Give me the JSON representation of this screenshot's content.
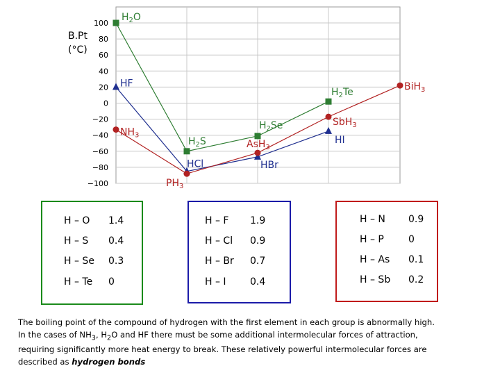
{
  "chart_data": {
    "type": "line",
    "y_axis_title": [
      "B.Pt",
      "(°C)"
    ],
    "yticks": [
      100,
      80,
      60,
      40,
      20,
      0,
      -20,
      -40,
      -60,
      -80,
      -100
    ],
    "ylim": [
      -100,
      100
    ],
    "grid": true,
    "series": [
      {
        "color": "#2e7d32",
        "marker": "square",
        "points": [
          {
            "name": "H2O",
            "y": 100
          },
          {
            "name": "H2S",
            "y": -60
          },
          {
            "name": "H2Se",
            "y": -41
          },
          {
            "name": "H2Te",
            "y": 2
          }
        ]
      },
      {
        "color": "#1f2f8f",
        "marker": "triangle",
        "points": [
          {
            "name": "HF",
            "y": 20
          },
          {
            "name": "HCl",
            "y": -85
          },
          {
            "name": "HBr",
            "y": -67
          },
          {
            "name": "HI",
            "y": -35
          }
        ]
      },
      {
        "color": "#b22222",
        "marker": "circle",
        "points": [
          {
            "name": "NH3",
            "y": -33
          },
          {
            "name": "PH3",
            "y": -88
          },
          {
            "name": "AsH3",
            "y": -62
          },
          {
            "name": "SbH3",
            "y": -17
          },
          {
            "name": "BiH3",
            "y": 22
          }
        ]
      }
    ],
    "point_labels": {
      "H2O": [
        "H",
        "2",
        "O"
      ],
      "H2S": [
        "H",
        "2",
        "S"
      ],
      "H2Se": [
        "H",
        "2",
        "Se"
      ],
      "H2Te": [
        "H",
        "2",
        "Te"
      ],
      "HF": [
        "HF"
      ],
      "HCl": [
        "HCl"
      ],
      "HBr": [
        "HBr"
      ],
      "HI": [
        "HI"
      ],
      "NH3": [
        "NH",
        "3"
      ],
      "PH3": [
        "PH",
        "3"
      ],
      "AsH3": [
        "AsH",
        "3"
      ],
      "SbH3": [
        "SbH",
        "3"
      ],
      "BiH3": [
        "BiH",
        "3"
      ]
    }
  },
  "tables": [
    {
      "color": "#1a8a1a",
      "rows": [
        [
          "H – O",
          "1.4"
        ],
        [
          "H – S",
          "0.4"
        ],
        [
          "H – Se",
          "0.3"
        ],
        [
          "H – Te",
          "0"
        ]
      ]
    },
    {
      "color": "#1a1aa8",
      "rows": [
        [
          "H – F",
          "1.9"
        ],
        [
          "H – Cl",
          "0.9"
        ],
        [
          "H – Br",
          "0.7"
        ],
        [
          "H – I",
          "0.4"
        ]
      ]
    },
    {
      "color": "#c01a1a",
      "rows": [
        [
          "H – N",
          "0.9"
        ],
        [
          "H – P",
          "0"
        ],
        [
          "H – As",
          "0.1"
        ],
        [
          "H – Sb",
          "0.2"
        ]
      ]
    }
  ],
  "note": {
    "line1": "The boiling point of the compound of hydrogen with the first element in each group is abnormally high.",
    "line2a": "In the cases of NH",
    "line2b": "3",
    "line2c": ", H",
    "line2d": "2",
    "line2e": "O and HF there must be some additional intermolecular forces of attraction,",
    "line3": "requiring significantly more heat energy to break. These relatively powerful intermolecular forces are",
    "line4a": "described as ",
    "line4b": "hydrogen bonds"
  }
}
